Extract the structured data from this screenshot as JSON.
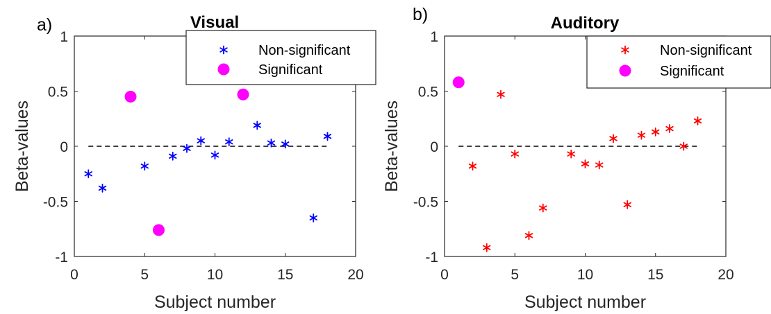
{
  "chart_data": [
    {
      "type": "scatter",
      "panel_label": "a)",
      "title": "Visual",
      "xlabel": "Subject number",
      "ylabel": "Beta-values",
      "xlim": [
        0,
        20
      ],
      "ylim": [
        -1,
        1
      ],
      "xticks": [
        "0",
        "5",
        "10",
        "15",
        "20"
      ],
      "yticks": [
        "1",
        "0.5",
        "0",
        "-0.5",
        "-1"
      ],
      "grid": false,
      "legend_position": "top-right",
      "zero_line": {
        "y": 0,
        "x_range": [
          1,
          18
        ],
        "style": "dashed"
      },
      "series": [
        {
          "name": "Non-significant",
          "marker": "asterisk",
          "color": "#0000ff",
          "points": [
            {
              "x": 1,
              "y": -0.25
            },
            {
              "x": 2,
              "y": -0.38
            },
            {
              "x": 5,
              "y": -0.18
            },
            {
              "x": 7,
              "y": -0.09
            },
            {
              "x": 8,
              "y": -0.02
            },
            {
              "x": 9,
              "y": 0.05
            },
            {
              "x": 10,
              "y": -0.08
            },
            {
              "x": 11,
              "y": 0.04
            },
            {
              "x": 13,
              "y": 0.19
            },
            {
              "x": 14,
              "y": 0.03
            },
            {
              "x": 15,
              "y": 0.02
            },
            {
              "x": 17,
              "y": -0.65
            },
            {
              "x": 18,
              "y": 0.09
            }
          ]
        },
        {
          "name": "Significant",
          "marker": "circle",
          "color": "#ff00ff",
          "points": [
            {
              "x": 4,
              "y": 0.45
            },
            {
              "x": 6,
              "y": -0.76
            },
            {
              "x": 12,
              "y": 0.47
            }
          ]
        }
      ]
    },
    {
      "type": "scatter",
      "panel_label": "b)",
      "title": "Auditory",
      "xlabel": "Subject number",
      "ylabel": "Beta-values",
      "xlim": [
        0,
        20
      ],
      "ylim": [
        -1,
        1
      ],
      "xticks": [
        "0",
        "5",
        "10",
        "15",
        "20"
      ],
      "yticks": [
        "1",
        "0.5",
        "0",
        "-0.5",
        "-1"
      ],
      "grid": false,
      "legend_position": "top-right",
      "zero_line": {
        "y": 0,
        "x_range": [
          1,
          18
        ],
        "style": "dashed"
      },
      "series": [
        {
          "name": "Non-significant",
          "marker": "asterisk",
          "color": "#ff0000",
          "points": [
            {
              "x": 2,
              "y": -0.18
            },
            {
              "x": 3,
              "y": -0.92
            },
            {
              "x": 4,
              "y": 0.47
            },
            {
              "x": 5,
              "y": -0.07
            },
            {
              "x": 6,
              "y": -0.81
            },
            {
              "x": 7,
              "y": -0.56
            },
            {
              "x": 9,
              "y": -0.07
            },
            {
              "x": 10,
              "y": -0.16
            },
            {
              "x": 11,
              "y": -0.17
            },
            {
              "x": 12,
              "y": 0.07
            },
            {
              "x": 13,
              "y": -0.53
            },
            {
              "x": 14,
              "y": 0.1
            },
            {
              "x": 15,
              "y": 0.13
            },
            {
              "x": 16,
              "y": 0.16
            },
            {
              "x": 17,
              "y": 0.0
            },
            {
              "x": 18,
              "y": 0.23
            }
          ]
        },
        {
          "name": "Significant",
          "marker": "circle",
          "color": "#ff00ff",
          "points": [
            {
              "x": 1,
              "y": 0.58
            }
          ]
        }
      ]
    }
  ]
}
